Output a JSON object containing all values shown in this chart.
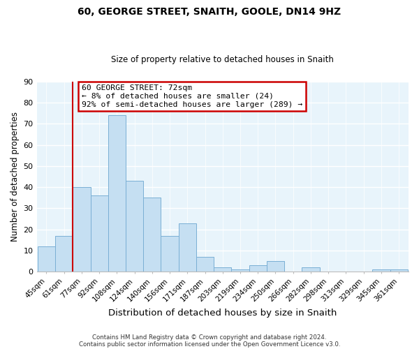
{
  "title": "60, GEORGE STREET, SNAITH, GOOLE, DN14 9HZ",
  "subtitle": "Size of property relative to detached houses in Snaith",
  "xlabel": "Distribution of detached houses by size in Snaith",
  "ylabel": "Number of detached properties",
  "categories": [
    "45sqm",
    "61sqm",
    "77sqm",
    "92sqm",
    "108sqm",
    "124sqm",
    "140sqm",
    "156sqm",
    "171sqm",
    "187sqm",
    "203sqm",
    "219sqm",
    "234sqm",
    "250sqm",
    "266sqm",
    "282sqm",
    "298sqm",
    "313sqm",
    "329sqm",
    "345sqm",
    "361sqm"
  ],
  "values": [
    12,
    17,
    40,
    36,
    74,
    43,
    35,
    17,
    23,
    7,
    2,
    1,
    3,
    5,
    0,
    2,
    0,
    0,
    0,
    1,
    1
  ],
  "bar_color": "#c5dff2",
  "bar_edge_color": "#7aafd4",
  "background_color": "#deedf8",
  "plot_bg_color": "#e8f4fb",
  "grid_color": "#ffffff",
  "ylim": [
    0,
    90
  ],
  "yticks": [
    0,
    10,
    20,
    30,
    40,
    50,
    60,
    70,
    80,
    90
  ],
  "property_line_color": "#cc0000",
  "annotation_text": "60 GEORGE STREET: 72sqm\n← 8% of detached houses are smaller (24)\n92% of semi-detached houses are larger (289) →",
  "annotation_box_edge_color": "#cc0000",
  "footer1": "Contains HM Land Registry data © Crown copyright and database right 2024.",
  "footer2": "Contains public sector information licensed under the Open Government Licence v3.0."
}
